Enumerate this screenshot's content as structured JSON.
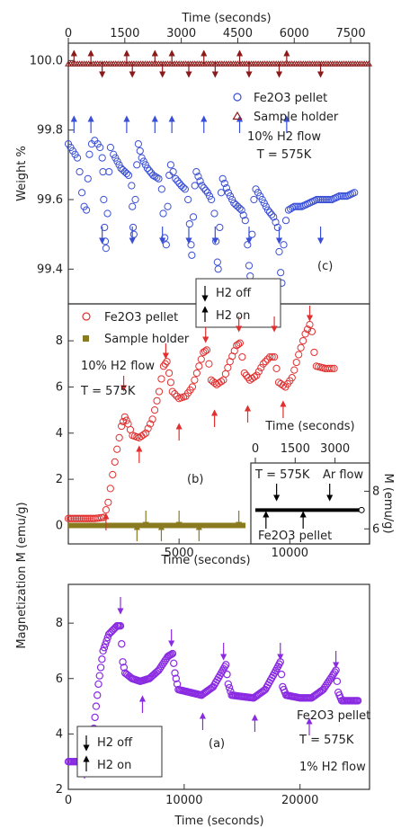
{
  "top_axis": {
    "label": "Time (seconds)",
    "ticks": [
      "0",
      "1500",
      "3000",
      "4500",
      "6000",
      "7500"
    ],
    "tick_values": [
      0,
      1500,
      3000,
      4500,
      6000,
      7500
    ],
    "range": [
      0,
      8000
    ]
  },
  "colors": {
    "blue": "#3a4fd6",
    "darkred": "#8b1a1a",
    "red": "#e03030",
    "olive": "#8a7a20",
    "purple": "#8a2be2",
    "black": "#000000"
  },
  "chart_data": [
    {
      "type": "scatter",
      "panel": "(c)",
      "ylabel": "Weight %",
      "xlim": [
        0,
        8000
      ],
      "ylim": [
        99.3,
        100.05
      ],
      "ytick_labels": [
        "99.4",
        "99.6",
        "99.8",
        "100.0"
      ],
      "ytick_values": [
        99.4,
        99.6,
        99.8,
        100.0
      ],
      "legend": {
        "position": "top-right",
        "entries": [
          "Fe2O3 pellet",
          "Sample holder"
        ],
        "notes": [
          "10% H2 flow",
          "T = 575K"
        ]
      },
      "arrow_legend": [
        "H2 off",
        "H2 on"
      ],
      "series": [
        {
          "name": "Fe2O3 pellet",
          "marker": "circle",
          "color": "#3a4fd6",
          "points": [
            [
              0,
              99.76
            ],
            [
              120,
              99.74
            ],
            [
              240,
              99.72
            ],
            [
              300,
              99.68
            ],
            [
              360,
              99.62
            ],
            [
              420,
              99.58
            ],
            [
              480,
              99.57
            ],
            [
              520,
              99.66
            ],
            [
              560,
              99.73
            ],
            [
              620,
              99.76
            ],
            [
              700,
              99.77
            ],
            [
              780,
              99.76
            ],
            [
              840,
              99.75
            ],
            [
              900,
              99.72
            ],
            [
              920,
              99.68
            ],
            [
              940,
              99.6
            ],
            [
              960,
              99.52
            ],
            [
              980,
              99.48
            ],
            [
              1000,
              99.46
            ],
            [
              1040,
              99.56
            ],
            [
              1080,
              99.68
            ],
            [
              1120,
              99.75
            ],
            [
              1200,
              99.73
            ],
            [
              1300,
              99.71
            ],
            [
              1400,
              99.69
            ],
            [
              1500,
              99.68
            ],
            [
              1600,
              99.67
            ],
            [
              1680,
              99.64
            ],
            [
              1700,
              99.58
            ],
            [
              1720,
              99.52
            ],
            [
              1740,
              99.5
            ],
            [
              1780,
              99.6
            ],
            [
              1820,
              99.7
            ],
            [
              1860,
              99.76
            ],
            [
              1950,
              99.72
            ],
            [
              2100,
              99.69
            ],
            [
              2250,
              99.67
            ],
            [
              2400,
              99.66
            ],
            [
              2480,
              99.63
            ],
            [
              2520,
              99.56
            ],
            [
              2560,
              99.49
            ],
            [
              2600,
              99.47
            ],
            [
              2640,
              99.58
            ],
            [
              2680,
              99.67
            ],
            [
              2720,
              99.7
            ],
            [
              2850,
              99.66
            ],
            [
              3000,
              99.64
            ],
            [
              3100,
              99.63
            ],
            [
              3180,
              99.6
            ],
            [
              3220,
              99.53
            ],
            [
              3260,
              99.47
            ],
            [
              3280,
              99.44
            ],
            [
              3320,
              99.55
            ],
            [
              3360,
              99.64
            ],
            [
              3400,
              99.68
            ],
            [
              3550,
              99.64
            ],
            [
              3700,
              99.62
            ],
            [
              3800,
              99.6
            ],
            [
              3880,
              99.56
            ],
            [
              3920,
              99.48
            ],
            [
              3960,
              99.42
            ],
            [
              3980,
              99.4
            ],
            [
              4020,
              99.52
            ],
            [
              4060,
              99.62
            ],
            [
              4100,
              99.66
            ],
            [
              4250,
              99.62
            ],
            [
              4400,
              99.59
            ],
            [
              4600,
              99.57
            ],
            [
              4700,
              99.54
            ],
            [
              4760,
              99.47
            ],
            [
              4800,
              99.41
            ],
            [
              4830,
              99.38
            ],
            [
              4880,
              99.5
            ],
            [
              4930,
              99.6
            ],
            [
              4980,
              99.63
            ],
            [
              5150,
              99.6
            ],
            [
              5300,
              99.57
            ],
            [
              5450,
              99.55
            ],
            [
              5560,
              99.52
            ],
            [
              5600,
              99.45
            ],
            [
              5640,
              99.39
            ],
            [
              5670,
              99.36
            ],
            [
              5720,
              99.47
            ],
            [
              5780,
              99.54
            ],
            [
              5850,
              99.57
            ],
            [
              6000,
              99.58
            ],
            [
              6200,
              99.58
            ],
            [
              6400,
              99.59
            ],
            [
              6600,
              99.6
            ],
            [
              6800,
              99.6
            ],
            [
              7000,
              99.6
            ],
            [
              7200,
              99.61
            ],
            [
              7400,
              99.61
            ],
            [
              7600,
              99.62
            ]
          ]
        },
        {
          "name": "Sample holder",
          "marker": "triangle",
          "color": "#8b1a1a",
          "points": [
            [
              0,
              99.99
            ],
            [
              8000,
              99.99
            ]
          ]
        }
      ],
      "arrows_up": [
        150,
        600,
        1550,
        2300,
        2750,
        3600,
        4550,
        5800
      ],
      "arrows_down": [
        900,
        1700,
        2500,
        3200,
        3900,
        4800,
        5600,
        6700
      ]
    },
    {
      "type": "scatter",
      "panel": "(b)",
      "ylabel": "Magnetization M (emu/g)",
      "xlabel": "Time (seconds)",
      "xlim": [
        0,
        13600
      ],
      "ylim": [
        -0.8,
        9.6
      ],
      "xtick_labels": [
        "5000",
        "10000"
      ],
      "xtick_values": [
        5000,
        10000
      ],
      "ytick_labels": [
        "0",
        "2",
        "4",
        "6",
        "8"
      ],
      "ytick_values": [
        0,
        2,
        4,
        6,
        8
      ],
      "legend": {
        "position": "top-left",
        "entries": [
          "Fe2O3 pellet",
          "Sample holder"
        ],
        "notes": [
          "10% H2 flow",
          "T = 575K"
        ]
      },
      "series": [
        {
          "name": "Fe2O3 pellet",
          "marker": "circle",
          "color": "#e03030",
          "points": [
            [
              0,
              0.3
            ],
            [
              600,
              0.3
            ],
            [
              1200,
              0.3
            ],
            [
              1600,
              0.35
            ],
            [
              1800,
              1.0
            ],
            [
              2000,
              2.2
            ],
            [
              2200,
              3.3
            ],
            [
              2400,
              4.3
            ],
            [
              2550,
              4.7
            ],
            [
              2700,
              4.4
            ],
            [
              2900,
              3.9
            ],
            [
              3200,
              3.8
            ],
            [
              3500,
              4.0
            ],
            [
              3800,
              4.6
            ],
            [
              4100,
              5.8
            ],
            [
              4300,
              6.9
            ],
            [
              4450,
              7.1
            ],
            [
              4550,
              6.6
            ],
            [
              4700,
              5.8
            ],
            [
              5000,
              5.5
            ],
            [
              5300,
              5.6
            ],
            [
              5600,
              6.0
            ],
            [
              5900,
              6.9
            ],
            [
              6100,
              7.5
            ],
            [
              6250,
              7.6
            ],
            [
              6350,
              7.0
            ],
            [
              6450,
              6.3
            ],
            [
              6700,
              6.1
            ],
            [
              7000,
              6.3
            ],
            [
              7300,
              7.1
            ],
            [
              7600,
              7.8
            ],
            [
              7750,
              7.9
            ],
            [
              7850,
              7.3
            ],
            [
              7950,
              6.6
            ],
            [
              8200,
              6.3
            ],
            [
              8500,
              6.5
            ],
            [
              8800,
              7.0
            ],
            [
              9100,
              7.3
            ],
            [
              9300,
              7.3
            ],
            [
              9400,
              6.8
            ],
            [
              9500,
              6.2
            ],
            [
              9800,
              6.0
            ],
            [
              10100,
              6.4
            ],
            [
              10400,
              7.4
            ],
            [
              10700,
              8.3
            ],
            [
              10900,
              8.7
            ],
            [
              11000,
              8.4
            ],
            [
              11100,
              7.5
            ],
            [
              11200,
              6.9
            ],
            [
              11600,
              6.8
            ],
            [
              12000,
              6.8
            ]
          ]
        },
        {
          "name": "Sample holder",
          "marker": "square",
          "color": "#8a7a20",
          "points": [
            [
              0,
              0.0
            ],
            [
              8000,
              0.0
            ]
          ]
        }
      ],
      "arrows_up": [
        1700,
        3200,
        5000,
        6600,
        8100,
        9700
      ],
      "arrows_down": [
        2500,
        4400,
        6200,
        7700,
        9300,
        10900
      ],
      "holder_arrows_up": [
        3100,
        4200,
        5900
      ],
      "holder_arrows_down": [
        3500,
        5000,
        7700
      ],
      "inset": {
        "xlabel": "Time (seconds)",
        "ylabel": "M (emu/g)",
        "xtick_labels": [
          "0",
          "1500",
          "3000"
        ],
        "xtick_values": [
          0,
          1500,
          3000
        ],
        "ytick_labels": [
          "6",
          "8"
        ],
        "ytick_values": [
          6,
          8
        ],
        "annotations": [
          "T = 575K",
          "Ar flow",
          "Fe2O3 pellet"
        ],
        "xlim": [
          0,
          4300
        ],
        "ylim": [
          5.2,
          9.5
        ],
        "points": [
          [
            0,
            7.0
          ],
          [
            500,
            7.0
          ],
          [
            1000,
            7.0
          ],
          [
            1500,
            7.0
          ],
          [
            2000,
            7.0
          ],
          [
            2500,
            7.0
          ],
          [
            3000,
            7.0
          ],
          [
            3500,
            7.0
          ],
          [
            4000,
            7.0
          ]
        ],
        "arrows_down": [
          800,
          2800
        ],
        "arrows_up": [
          400,
          1800
        ]
      }
    },
    {
      "type": "scatter",
      "panel": "(a)",
      "xlabel": "Time (seconds)",
      "xlim": [
        0,
        26000
      ],
      "ylim": [
        2,
        9.4
      ],
      "xtick_labels": [
        "0",
        "10000",
        "20000"
      ],
      "xtick_values": [
        0,
        10000,
        20000
      ],
      "ytick_labels": [
        "2",
        "4",
        "6",
        "8"
      ],
      "ytick_values": [
        2,
        4,
        6,
        8
      ],
      "legend": {
        "position": "bottom-right",
        "entries": [
          "Fe2O3 pellet"
        ],
        "notes": [
          "T = 575K",
          "1% H2 flow"
        ]
      },
      "arrow_legend": [
        "H2 off",
        "H2 on"
      ],
      "series": [
        {
          "name": "Fe2O3 pellet",
          "marker": "circle",
          "color": "#8a2be2",
          "points": [
            [
              0,
              3.0
            ],
            [
              800,
              3.0
            ],
            [
              1400,
              3.05
            ],
            [
              1800,
              3.3
            ],
            [
              2200,
              4.2
            ],
            [
              2600,
              5.8
            ],
            [
              3000,
              7.0
            ],
            [
              3500,
              7.6
            ],
            [
              4200,
              7.9
            ],
            [
              4500,
              7.9
            ],
            [
              4700,
              6.6
            ],
            [
              4900,
              6.2
            ],
            [
              5500,
              6.0
            ],
            [
              6200,
              5.9
            ],
            [
              7000,
              6.0
            ],
            [
              7800,
              6.3
            ],
            [
              8600,
              6.8
            ],
            [
              9000,
              6.9
            ],
            [
              9200,
              6.2
            ],
            [
              9500,
              5.6
            ],
            [
              10500,
              5.5
            ],
            [
              11500,
              5.4
            ],
            [
              12500,
              5.7
            ],
            [
              13200,
              6.2
            ],
            [
              13600,
              6.5
            ],
            [
              13800,
              5.8
            ],
            [
              14100,
              5.4
            ],
            [
              15000,
              5.35
            ],
            [
              16000,
              5.3
            ],
            [
              17000,
              5.6
            ],
            [
              17800,
              6.2
            ],
            [
              18300,
              6.6
            ],
            [
              18500,
              5.7
            ],
            [
              18800,
              5.4
            ],
            [
              20000,
              5.3
            ],
            [
              21000,
              5.3
            ],
            [
              22000,
              5.6
            ],
            [
              22800,
              6.1
            ],
            [
              23100,
              6.3
            ],
            [
              23300,
              5.5
            ],
            [
              23600,
              5.2
            ],
            [
              24500,
              5.2
            ],
            [
              25000,
              5.2
            ]
          ]
        }
      ],
      "arrows_down": [
        4500,
        8900,
        13400,
        18300,
        23100
      ],
      "arrows_up": [
        1400,
        6400,
        11600,
        16100,
        20800
      ]
    }
  ],
  "labels": {
    "panel_c": "(c)",
    "panel_b": "(b)",
    "panel_a": "(a)",
    "c_legend_1": "Fe2O3 pellet",
    "c_legend_2": "Sample holder",
    "c_note_1": "10% H2 flow",
    "c_note_2": "T = 575K",
    "b_legend_1": "Fe2O3 pellet",
    "b_legend_2": "Sample holder",
    "b_note_1": "10% H2 flow",
    "b_note_2": "T = 575K",
    "a_legend_1": "Fe2O3 pellet",
    "a_note_1": "T = 575K",
    "a_note_2": "1% H2 flow",
    "h2off": "H2 off",
    "h2on": "H2 on",
    "ylabel_weight": "Weight %",
    "ylabel_mag": "Magnetization M (emu/g)",
    "xlabel_b": "Time (seconds)",
    "xlabel_a": "Time (seconds)",
    "top_xlabel": "Time (seconds)",
    "inset_xlabel": "Time (seconds)",
    "inset_ylabel": "M (emu/g)",
    "inset_t": "T = 575K",
    "inset_ar": "Ar flow",
    "inset_fe": "Fe2O3 pellet"
  }
}
